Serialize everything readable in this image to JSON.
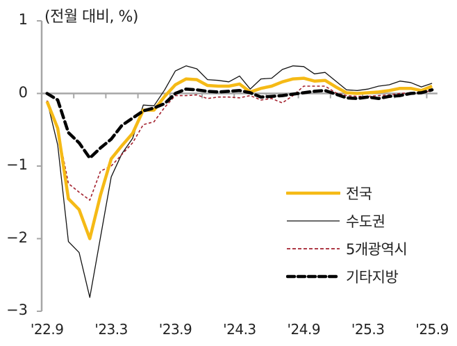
{
  "chart_data": {
    "type": "line",
    "title": "",
    "unit_label": "(전월 대비, %)",
    "xlabel": "",
    "ylabel": "(전월 대비, %)",
    "ylim": [
      -3,
      1
    ],
    "yticks": [
      1,
      0,
      -1,
      -2,
      -3
    ],
    "ytick_labels": [
      "1",
      "0",
      "-1",
      "-2",
      "-3"
    ],
    "x": [
      "'22.9",
      "'22.10",
      "'22.11",
      "'22.12",
      "'23.1",
      "'23.2",
      "'23.3",
      "'23.4",
      "'23.5",
      "'23.6",
      "'23.7",
      "'23.8",
      "'23.9",
      "'23.10",
      "'23.11",
      "'23.12",
      "'24.1",
      "'24.2",
      "'24.3",
      "'24.4",
      "'24.5",
      "'24.6",
      "'24.7",
      "'24.8",
      "'24.9",
      "'24.10",
      "'24.11",
      "'24.12",
      "'25.1",
      "'25.2",
      "'25.3",
      "'25.4",
      "'25.5",
      "'25.6",
      "'25.7",
      "'25.8",
      "'25.9"
    ],
    "xtick_labels": [
      "'22.9",
      "'23.3",
      "'23.9",
      "'24.3",
      "'24.9",
      "'25.3",
      "'25.9"
    ],
    "xtick_indices": [
      0,
      6,
      12,
      18,
      24,
      30,
      36
    ],
    "grid": false,
    "legend_position": "lower right inside",
    "series": [
      {
        "name": "전국",
        "color": "#F5BA16",
        "style": "solid",
        "width": 4.5,
        "values": [
          -0.11,
          -0.48,
          -1.45,
          -1.6,
          -2.0,
          -1.4,
          -0.9,
          -0.72,
          -0.55,
          -0.23,
          -0.23,
          -0.04,
          0.12,
          0.2,
          0.19,
          0.11,
          0.1,
          0.1,
          0.13,
          0.02,
          0.07,
          0.1,
          0.16,
          0.2,
          0.21,
          0.17,
          0.18,
          0.09,
          0.01,
          0.0,
          0.01,
          0.02,
          0.04,
          0.07,
          0.07,
          0.04,
          0.1
        ]
      },
      {
        "name": "수도권",
        "color": "#111111",
        "style": "solid",
        "width": 1.3,
        "values": [
          -0.1,
          -0.71,
          -2.04,
          -2.19,
          -2.81,
          -1.98,
          -1.15,
          -0.83,
          -0.62,
          -0.16,
          -0.17,
          0.05,
          0.31,
          0.38,
          0.34,
          0.19,
          0.18,
          0.16,
          0.24,
          0.06,
          0.2,
          0.21,
          0.33,
          0.38,
          0.37,
          0.27,
          0.29,
          0.17,
          0.05,
          0.04,
          0.06,
          0.1,
          0.12,
          0.17,
          0.15,
          0.09,
          0.14
        ]
      },
      {
        "name": "5개광역시",
        "color": "#A31F2C",
        "style": "dashed-thin",
        "width": 1.6,
        "values": [
          -0.1,
          -0.5,
          -1.24,
          -1.36,
          -1.47,
          -1.07,
          -1.0,
          -0.84,
          -0.68,
          -0.43,
          -0.39,
          -0.19,
          -0.03,
          -0.03,
          -0.02,
          -0.07,
          -0.05,
          -0.05,
          -0.06,
          -0.03,
          -0.09,
          -0.07,
          -0.13,
          -0.03,
          0.1,
          0.1,
          0.1,
          0.01,
          -0.03,
          -0.04,
          -0.04,
          -0.03,
          -0.02,
          0.0,
          0.01,
          0.01,
          0.04
        ]
      },
      {
        "name": "기타지방",
        "color": "#000000",
        "style": "dashed-thick",
        "width": 4.5,
        "values": [
          0.0,
          -0.09,
          -0.54,
          -0.68,
          -0.89,
          -0.75,
          -0.63,
          -0.44,
          -0.34,
          -0.24,
          -0.2,
          -0.14,
          0.0,
          0.06,
          0.05,
          0.03,
          0.02,
          0.03,
          0.04,
          0.01,
          -0.05,
          -0.04,
          -0.03,
          -0.01,
          0.01,
          0.03,
          0.04,
          -0.01,
          -0.06,
          -0.07,
          -0.05,
          -0.07,
          -0.04,
          -0.03,
          0.0,
          0.01,
          0.05
        ]
      }
    ]
  },
  "colors": {
    "axis": "#A6A6A6"
  }
}
